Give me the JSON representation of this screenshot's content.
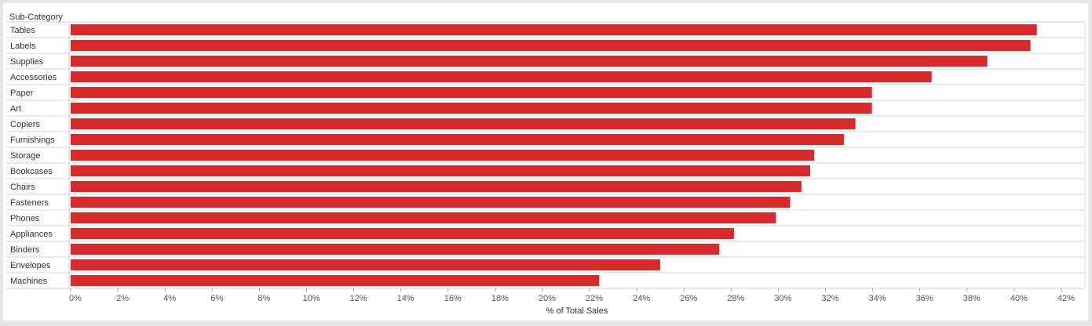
{
  "chart_data": {
    "type": "bar",
    "orientation": "horizontal",
    "row_header": "Sub-Category",
    "xlabel": "% of Total Sales",
    "xlim": [
      0,
      42
    ],
    "x_ticks": [
      "0%",
      "2%",
      "4%",
      "6%",
      "8%",
      "10%",
      "12%",
      "14%",
      "16%",
      "18%",
      "20%",
      "22%",
      "24%",
      "26%",
      "28%",
      "30%",
      "32%",
      "34%",
      "36%",
      "38%",
      "40%",
      "42%"
    ],
    "categories": [
      "Tables",
      "Labels",
      "Supplies",
      "Accessories",
      "Paper",
      "Art",
      "Copiers",
      "Furnishings",
      "Storage",
      "Bookcases",
      "Chairs",
      "Fasteners",
      "Phones",
      "Appliances",
      "Binders",
      "Envelopes",
      "Machines"
    ],
    "values": [
      40.96,
      40.69,
      38.86,
      36.5,
      33.97,
      33.97,
      33.27,
      32.78,
      31.52,
      31.35,
      30.98,
      30.5,
      29.9,
      28.12,
      27.5,
      24.99,
      22.41
    ],
    "bar_color": "#d9292b",
    "grid": "horizontal row separators"
  }
}
